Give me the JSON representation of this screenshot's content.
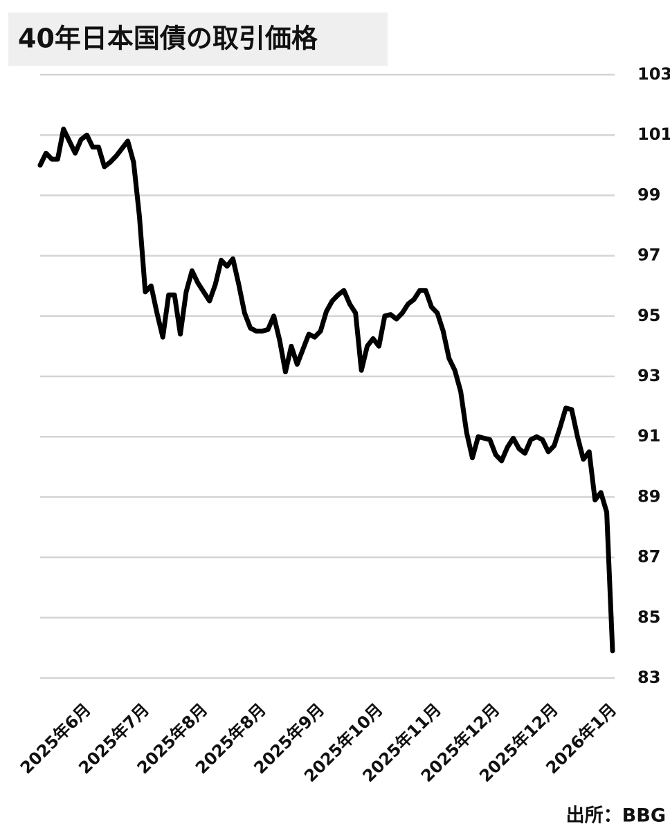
{
  "chart_data": {
    "type": "line",
    "title": "40年日本国債の取引価格",
    "source": "出所：BBG",
    "categories": [
      null,
      null,
      null,
      null,
      null,
      null,
      null,
      null,
      "2025年6月",
      null,
      null,
      null,
      null,
      null,
      null,
      null,
      null,
      null,
      "2025年7月",
      null,
      null,
      null,
      null,
      null,
      null,
      null,
      null,
      null,
      "2025年8月",
      null,
      null,
      null,
      null,
      null,
      null,
      null,
      null,
      null,
      "2025年8月",
      null,
      null,
      null,
      null,
      null,
      null,
      null,
      null,
      null,
      "2025年9月",
      null,
      null,
      null,
      null,
      null,
      null,
      null,
      null,
      null,
      "2025年10月",
      null,
      null,
      null,
      null,
      null,
      null,
      null,
      null,
      null,
      "2025年11月",
      null,
      null,
      null,
      null,
      null,
      null,
      null,
      null,
      null,
      "2025年12月",
      null,
      null,
      null,
      null,
      null,
      null,
      null,
      null,
      null,
      "2025年12月",
      null,
      null,
      null,
      null,
      null,
      null,
      null,
      null,
      null,
      "2026年1月"
    ],
    "values": [
      100.0,
      100.4,
      100.2,
      100.2,
      101.2,
      100.8,
      100.4,
      100.85,
      101.0,
      100.6,
      100.6,
      99.95,
      100.1,
      100.3,
      100.55,
      100.8,
      100.1,
      98.3,
      95.8,
      96.0,
      95.1,
      94.3,
      95.7,
      95.7,
      94.4,
      95.8,
      96.5,
      96.1,
      95.8,
      95.5,
      96.05,
      96.85,
      96.65,
      96.9,
      96.05,
      95.1,
      94.6,
      94.5,
      94.5,
      94.55,
      95.0,
      94.2,
      93.15,
      94.0,
      93.4,
      93.9,
      94.4,
      94.3,
      94.5,
      95.15,
      95.5,
      95.7,
      95.85,
      95.4,
      95.1,
      93.2,
      94.0,
      94.25,
      94.0,
      95.0,
      95.05,
      94.9,
      95.1,
      95.4,
      95.55,
      95.85,
      95.85,
      95.3,
      95.1,
      94.5,
      93.6,
      93.2,
      92.5,
      91.15,
      90.3,
      91.0,
      90.95,
      90.9,
      90.4,
      90.2,
      90.65,
      90.95,
      90.6,
      90.45,
      90.9,
      91.0,
      90.9,
      90.5,
      90.7,
      91.3,
      91.95,
      91.9,
      91.0,
      90.25,
      90.5,
      88.9,
      89.15,
      88.5,
      83.9
    ],
    "color": "#000000",
    "ylim": [
      83,
      103
    ],
    "yticks": [
      83,
      85,
      87,
      89,
      91,
      93,
      95,
      97,
      99,
      101,
      103
    ],
    "grid": true
  }
}
